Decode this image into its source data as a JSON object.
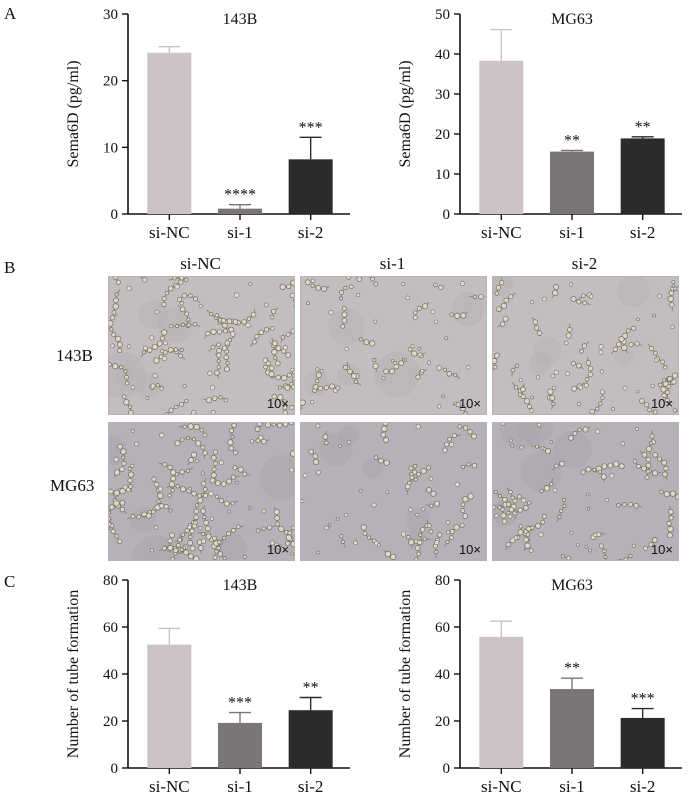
{
  "panels": {
    "a": "A",
    "b": "B",
    "c": "C"
  },
  "colors": {
    "si-NC": "#ccc3c4",
    "si-1": "#7b7575",
    "si-2": "#2d2a2a",
    "axis": "#111111"
  },
  "chart_data": [
    {
      "type": "bar",
      "id": "A-143B",
      "title": "143B",
      "ylabel": "Sema6D (pg/ml)",
      "xlabel": "",
      "categories": [
        "si-NC",
        "si-1",
        "si-2"
      ],
      "values": [
        24.2,
        0.8,
        8.2
      ],
      "errors": [
        0.9,
        0.6,
        3.3
      ],
      "significance": [
        "",
        "****",
        "***"
      ],
      "ylim": [
        0,
        30
      ],
      "yticks": [
        0,
        10,
        20,
        30
      ]
    },
    {
      "type": "bar",
      "id": "A-MG63",
      "title": "MG63",
      "ylabel": "Sema6D (pg/ml)",
      "xlabel": "",
      "categories": [
        "si-NC",
        "si-1",
        "si-2"
      ],
      "values": [
        38.3,
        15.6,
        18.9
      ],
      "errors": [
        7.8,
        0.3,
        0.4
      ],
      "significance": [
        "",
        "**",
        "**"
      ],
      "ylim": [
        0,
        50
      ],
      "yticks": [
        0,
        10,
        20,
        30,
        40,
        50
      ]
    },
    {
      "type": "bar",
      "id": "C-143B",
      "title": "143B",
      "ylabel": "Number of tube formation",
      "xlabel": "",
      "categories": [
        "si-NC",
        "si-1",
        "si-2"
      ],
      "values": [
        52.5,
        19.2,
        24.6
      ],
      "errors": [
        6.9,
        4.4,
        5.4
      ],
      "significance": [
        "",
        "***",
        "**"
      ],
      "ylim": [
        0,
        80
      ],
      "yticks": [
        0,
        20,
        40,
        60,
        80
      ]
    },
    {
      "type": "bar",
      "id": "C-MG63",
      "title": "MG63",
      "ylabel": "Number of tube formation",
      "xlabel": "",
      "categories": [
        "si-NC",
        "si-1",
        "si-2"
      ],
      "values": [
        55.8,
        33.6,
        21.3
      ],
      "errors": [
        6.7,
        4.6,
        4.0
      ],
      "significance": [
        "",
        "**",
        "***"
      ],
      "ylim": [
        0,
        80
      ],
      "yticks": [
        0,
        20,
        40,
        60,
        80
      ]
    }
  ],
  "micrographs": {
    "columns": [
      "si-NC",
      "si-1",
      "si-2"
    ],
    "rows": [
      "143B",
      "MG63"
    ],
    "magnification": "10×"
  }
}
